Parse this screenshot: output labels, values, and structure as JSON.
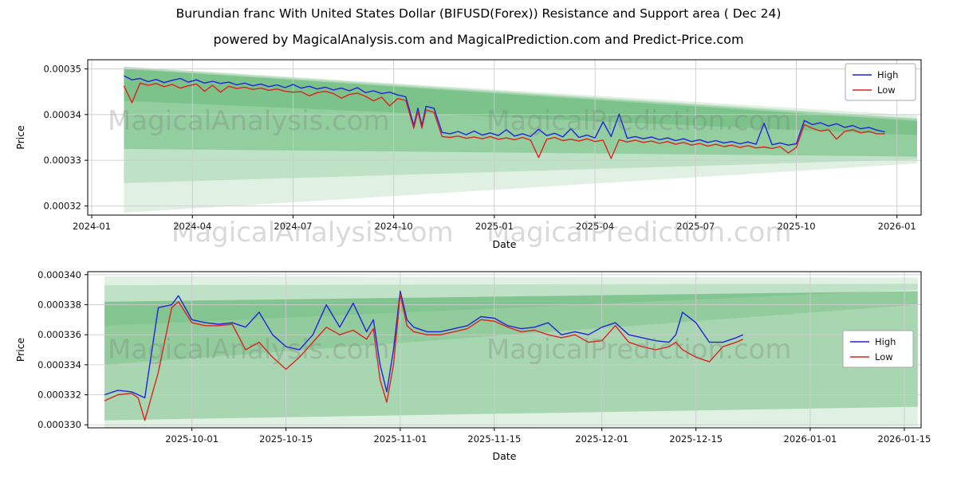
{
  "page": {
    "title": "Burundian franc With United States Dollar (BIFUSD(Forex)) Resistance and Support area ( Dec 24)",
    "subtitle": "powered by MagicalAnalysis.com and MagicalPrediction.com and Predict-Price.com"
  },
  "watermarks": {
    "left": "MagicalAnalysis.com",
    "right": "MagicalPrediction.com"
  },
  "legend": {
    "high": "High",
    "low": "Low"
  },
  "colors": {
    "high": "#2222dd",
    "low": "#dd2222",
    "band": "#2f9e44",
    "grid": "#cccccc",
    "spine": "#000000"
  },
  "chart_data": [
    {
      "type": "line",
      "title": "",
      "xlabel": "Date",
      "ylabel": "Price",
      "y_unit": "1e-6",
      "xlim": [
        2023.99,
        2026.06
      ],
      "ylim": [
        318,
        352
      ],
      "xticks": [
        [
          2024.0,
          "2024-01"
        ],
        [
          2024.25,
          "2024-04"
        ],
        [
          2024.5,
          "2024-07"
        ],
        [
          2024.75,
          "2024-10"
        ],
        [
          2025.0,
          "2025-01"
        ],
        [
          2025.25,
          "2025-04"
        ],
        [
          2025.5,
          "2025-07"
        ],
        [
          2025.75,
          "2025-10"
        ],
        [
          2026.0,
          "2026-01"
        ]
      ],
      "yticks": [
        [
          320,
          "0.00032"
        ],
        [
          330,
          "0.00033"
        ],
        [
          340,
          "0.00034"
        ],
        [
          350,
          "0.00035"
        ]
      ],
      "legend_position": "upper right",
      "grid": true,
      "series": [
        {
          "name": "High",
          "color_key": "high"
        },
        {
          "name": "Low",
          "color_key": "low"
        }
      ],
      "bands": [
        {
          "opacity": 0.15,
          "x0": 2024.08,
          "top0": 350.5,
          "bot0": 318.5,
          "x1": 2026.05,
          "top1": 339.8,
          "bot1": 329.3
        },
        {
          "opacity": 0.18,
          "x0": 2024.08,
          "top0": 350.5,
          "bot0": 325.0,
          "x1": 2026.05,
          "top1": 339.2,
          "bot1": 330.2
        },
        {
          "opacity": 0.3,
          "x0": 2024.08,
          "top0": 350.0,
          "bot0": 332.5,
          "x1": 2026.05,
          "top1": 338.6,
          "bot1": 330.8
        },
        {
          "opacity": 0.22,
          "x0": 2024.08,
          "top0": 350.2,
          "bot0": 343.0,
          "x1": 2026.05,
          "top1": 339.0,
          "bot1": 335.5
        }
      ],
      "points": [
        [
          2024.08,
          348.5,
          346.3
        ],
        [
          2024.1,
          347.6,
          342.6
        ],
        [
          2024.12,
          347.9,
          346.9
        ],
        [
          2024.14,
          347.2,
          346.4
        ],
        [
          2024.16,
          347.7,
          346.8
        ],
        [
          2024.18,
          347.0,
          346.1
        ],
        [
          2024.2,
          347.5,
          346.6
        ],
        [
          2024.22,
          347.9,
          345.8
        ],
        [
          2024.24,
          347.1,
          346.3
        ],
        [
          2024.26,
          347.6,
          346.7
        ],
        [
          2024.28,
          346.9,
          345.1
        ],
        [
          2024.3,
          347.3,
          346.4
        ],
        [
          2024.32,
          346.8,
          344.9
        ],
        [
          2024.34,
          347.1,
          346.2
        ],
        [
          2024.36,
          346.5,
          345.7
        ],
        [
          2024.38,
          346.9,
          346.0
        ],
        [
          2024.4,
          346.3,
          345.5
        ],
        [
          2024.42,
          346.7,
          345.8
        ],
        [
          2024.44,
          346.1,
          345.3
        ],
        [
          2024.46,
          346.5,
          345.6
        ],
        [
          2024.48,
          345.9,
          345.1
        ],
        [
          2024.5,
          346.6,
          344.9
        ],
        [
          2024.52,
          345.8,
          345.0
        ],
        [
          2024.54,
          346.2,
          344.1
        ],
        [
          2024.56,
          345.6,
          344.8
        ],
        [
          2024.58,
          346.0,
          345.1
        ],
        [
          2024.6,
          345.4,
          344.6
        ],
        [
          2024.62,
          345.8,
          343.6
        ],
        [
          2024.64,
          345.2,
          344.4
        ],
        [
          2024.66,
          345.9,
          344.7
        ],
        [
          2024.68,
          344.8,
          344.0
        ],
        [
          2024.7,
          345.2,
          343.0
        ],
        [
          2024.72,
          344.6,
          343.8
        ],
        [
          2024.74,
          344.9,
          341.9
        ],
        [
          2024.76,
          344.3,
          343.5
        ],
        [
          2024.78,
          343.9,
          343.1
        ],
        [
          2024.8,
          337.6,
          337.0
        ],
        [
          2024.81,
          341.4,
          340.7
        ],
        [
          2024.82,
          337.6,
          337.0
        ],
        [
          2024.83,
          341.8,
          341.0
        ],
        [
          2024.85,
          341.4,
          340.5
        ],
        [
          2024.87,
          336.1,
          335.2
        ],
        [
          2024.89,
          335.8,
          335.0
        ],
        [
          2024.91,
          336.3,
          335.3
        ],
        [
          2024.93,
          335.6,
          334.8
        ],
        [
          2024.95,
          336.4,
          335.1
        ],
        [
          2024.97,
          335.5,
          334.7
        ],
        [
          2024.99,
          336.0,
          335.2
        ],
        [
          2025.01,
          335.4,
          334.6
        ],
        [
          2025.03,
          336.7,
          334.9
        ],
        [
          2025.05,
          335.3,
          334.5
        ],
        [
          2025.07,
          335.8,
          335.0
        ],
        [
          2025.09,
          335.2,
          334.4
        ],
        [
          2025.11,
          336.8,
          330.6
        ],
        [
          2025.13,
          335.4,
          334.6
        ],
        [
          2025.15,
          335.9,
          335.0
        ],
        [
          2025.17,
          335.1,
          334.3
        ],
        [
          2025.19,
          336.9,
          334.6
        ],
        [
          2025.21,
          335.0,
          334.2
        ],
        [
          2025.23,
          335.5,
          334.7
        ],
        [
          2025.25,
          334.9,
          334.1
        ],
        [
          2025.27,
          338.4,
          334.4
        ],
        [
          2025.29,
          335.2,
          330.4
        ],
        [
          2025.31,
          340.1,
          334.5
        ],
        [
          2025.33,
          334.8,
          334.0
        ],
        [
          2025.35,
          335.2,
          334.4
        ],
        [
          2025.37,
          334.7,
          333.9
        ],
        [
          2025.39,
          335.1,
          334.2
        ],
        [
          2025.41,
          334.5,
          333.7
        ],
        [
          2025.43,
          334.9,
          334.1
        ],
        [
          2025.45,
          334.3,
          333.5
        ],
        [
          2025.47,
          334.7,
          333.9
        ],
        [
          2025.49,
          334.1,
          333.3
        ],
        [
          2025.51,
          334.5,
          333.7
        ],
        [
          2025.53,
          333.9,
          333.1
        ],
        [
          2025.55,
          334.3,
          333.5
        ],
        [
          2025.57,
          333.8,
          333.0
        ],
        [
          2025.59,
          334.1,
          333.3
        ],
        [
          2025.61,
          333.6,
          332.8
        ],
        [
          2025.63,
          334.0,
          333.2
        ],
        [
          2025.65,
          333.5,
          332.7
        ],
        [
          2025.67,
          338.1,
          332.9
        ],
        [
          2025.69,
          333.4,
          332.6
        ],
        [
          2025.71,
          333.8,
          333.0
        ],
        [
          2025.73,
          333.3,
          331.6
        ],
        [
          2025.75,
          333.6,
          332.8
        ],
        [
          2025.77,
          338.7,
          337.8
        ],
        [
          2025.79,
          337.8,
          337.0
        ],
        [
          2025.81,
          338.2,
          336.4
        ],
        [
          2025.83,
          337.5,
          336.7
        ],
        [
          2025.85,
          338.0,
          334.6
        ],
        [
          2025.87,
          337.2,
          336.3
        ],
        [
          2025.89,
          337.6,
          336.7
        ],
        [
          2025.91,
          336.9,
          336.0
        ],
        [
          2025.93,
          337.2,
          336.3
        ],
        [
          2025.95,
          336.6,
          335.8
        ],
        [
          2025.97,
          336.2,
          335.8
        ]
      ]
    },
    {
      "type": "line",
      "title": "",
      "xlabel": "Date",
      "ylabel": "Price",
      "y_unit": "1e-6",
      "x_unit": "days since 2025-09-15",
      "xlim": [
        0.5,
        124.5
      ],
      "ylim": [
        329.8,
        340.2
      ],
      "xticks": [
        [
          16,
          "2025-10-01"
        ],
        [
          30,
          "2025-10-15"
        ],
        [
          47,
          "2025-11-01"
        ],
        [
          61,
          "2025-11-15"
        ],
        [
          77,
          "2025-12-01"
        ],
        [
          91,
          "2025-12-15"
        ],
        [
          108,
          "2026-01-01"
        ],
        [
          122,
          "2026-01-15"
        ]
      ],
      "yticks": [
        [
          330,
          "0.000330"
        ],
        [
          332,
          "0.000332"
        ],
        [
          334,
          "0.000334"
        ],
        [
          336,
          "0.000336"
        ],
        [
          338,
          "0.000338"
        ],
        [
          340,
          "0.000340"
        ]
      ],
      "legend_position": "center right",
      "grid": true,
      "series": [
        {
          "name": "High",
          "color_key": "high"
        },
        {
          "name": "Low",
          "color_key": "low"
        }
      ],
      "bands": [
        {
          "opacity": 0.15,
          "x0": 3,
          "top0": 339.9,
          "bot0": 336.6,
          "x1": 124,
          "top1": 339.8,
          "bot1": 339.0
        },
        {
          "opacity": 0.18,
          "x0": 3,
          "top0": 339.3,
          "bot0": 334.0,
          "x1": 124,
          "top1": 339.4,
          "bot1": 338.0
        },
        {
          "opacity": 0.42,
          "x0": 3,
          "top0": 338.2,
          "bot0": 330.3,
          "x1": 124,
          "top1": 338.9,
          "bot1": 331.2
        },
        {
          "opacity": 0.15,
          "x0": 3,
          "top0": 330.3,
          "bot0": 329.8,
          "x1": 124,
          "top1": 331.2,
          "bot1": 329.9
        }
      ],
      "points": [
        [
          3,
          332.0,
          331.6
        ],
        [
          5,
          332.3,
          332.0
        ],
        [
          7,
          332.2,
          332.1
        ],
        [
          8,
          332.0,
          331.8
        ],
        [
          9,
          331.8,
          330.3
        ],
        [
          11,
          337.8,
          333.5
        ],
        [
          13,
          338.0,
          337.8
        ],
        [
          14,
          338.6,
          338.2
        ],
        [
          16,
          337.0,
          336.8
        ],
        [
          18,
          336.8,
          336.6
        ],
        [
          20,
          336.7,
          336.6
        ],
        [
          22,
          336.8,
          336.7
        ],
        [
          24,
          336.5,
          335.0
        ],
        [
          26,
          337.5,
          335.5
        ],
        [
          28,
          336.0,
          334.5
        ],
        [
          30,
          335.2,
          333.7
        ],
        [
          32,
          335.0,
          334.5
        ],
        [
          34,
          336.0,
          335.5
        ],
        [
          36,
          338.0,
          336.5
        ],
        [
          38,
          336.5,
          336.0
        ],
        [
          40,
          338.1,
          336.3
        ],
        [
          42,
          336.2,
          335.7
        ],
        [
          43,
          337.0,
          336.4
        ],
        [
          44,
          334.0,
          333.0
        ],
        [
          45,
          332.2,
          331.5
        ],
        [
          46,
          335.0,
          334.0
        ],
        [
          47,
          338.9,
          338.7
        ],
        [
          48,
          337.0,
          336.6
        ],
        [
          49,
          336.5,
          336.2
        ],
        [
          51,
          336.2,
          336.0
        ],
        [
          53,
          336.2,
          336.0
        ],
        [
          55,
          336.4,
          336.2
        ],
        [
          57,
          336.6,
          336.4
        ],
        [
          59,
          337.2,
          337.0
        ],
        [
          61,
          337.1,
          336.9
        ],
        [
          63,
          336.6,
          336.5
        ],
        [
          65,
          336.4,
          336.2
        ],
        [
          67,
          336.5,
          336.3
        ],
        [
          69,
          336.8,
          336.0
        ],
        [
          71,
          336.0,
          335.8
        ],
        [
          73,
          336.2,
          336.0
        ],
        [
          75,
          336.0,
          335.5
        ],
        [
          77,
          336.5,
          335.6
        ],
        [
          79,
          336.8,
          336.6
        ],
        [
          81,
          336.0,
          335.5
        ],
        [
          83,
          335.8,
          335.2
        ],
        [
          85,
          335.6,
          335.0
        ],
        [
          87,
          335.5,
          335.2
        ],
        [
          88,
          336.0,
          335.5
        ],
        [
          89,
          337.5,
          335.0
        ],
        [
          91,
          336.8,
          334.5
        ],
        [
          93,
          335.5,
          334.2
        ],
        [
          95,
          335.5,
          335.2
        ],
        [
          97,
          335.8,
          335.5
        ],
        [
          98,
          336.0,
          335.7
        ]
      ]
    }
  ]
}
